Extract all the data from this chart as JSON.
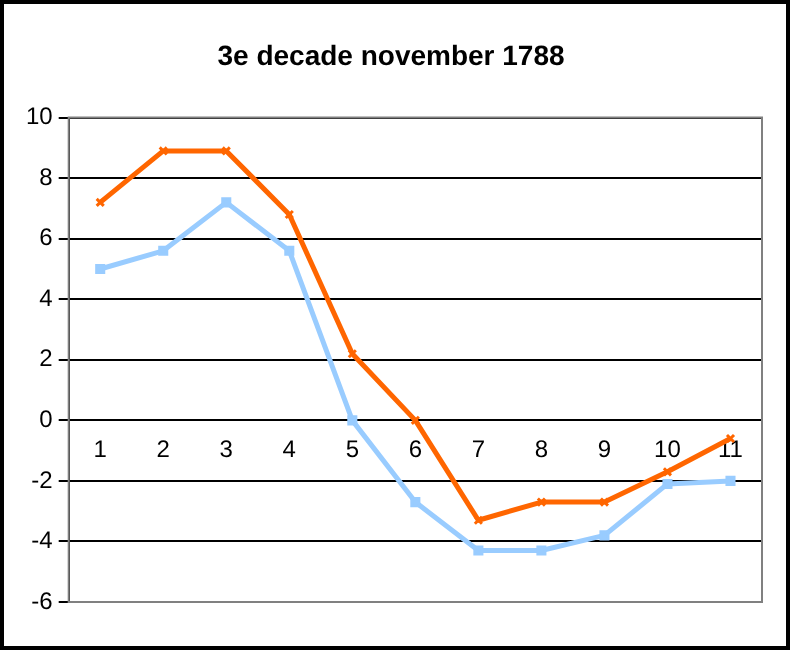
{
  "chart_data": {
    "type": "line",
    "title": "3e decade november 1788",
    "categories": [
      "1",
      "2",
      "3",
      "4",
      "5",
      "6",
      "7",
      "8",
      "9",
      "10",
      "11"
    ],
    "series": [
      {
        "color": "#ff6600",
        "marker": "cross",
        "values": [
          7.2,
          8.9,
          8.9,
          6.8,
          2.2,
          0.0,
          -3.3,
          -2.7,
          -2.7,
          -1.7,
          -0.6
        ]
      },
      {
        "color": "#99ccff",
        "marker": "square",
        "values": [
          5.0,
          5.6,
          7.2,
          5.6,
          0.0,
          -2.7,
          -4.3,
          -4.3,
          -3.8,
          -2.1,
          -2.0
        ]
      }
    ],
    "ylim": [
      -6,
      10
    ],
    "yticks": [
      -6,
      -4,
      -2,
      0,
      2,
      4,
      6,
      8,
      10
    ],
    "grid": "y",
    "legend": false
  }
}
